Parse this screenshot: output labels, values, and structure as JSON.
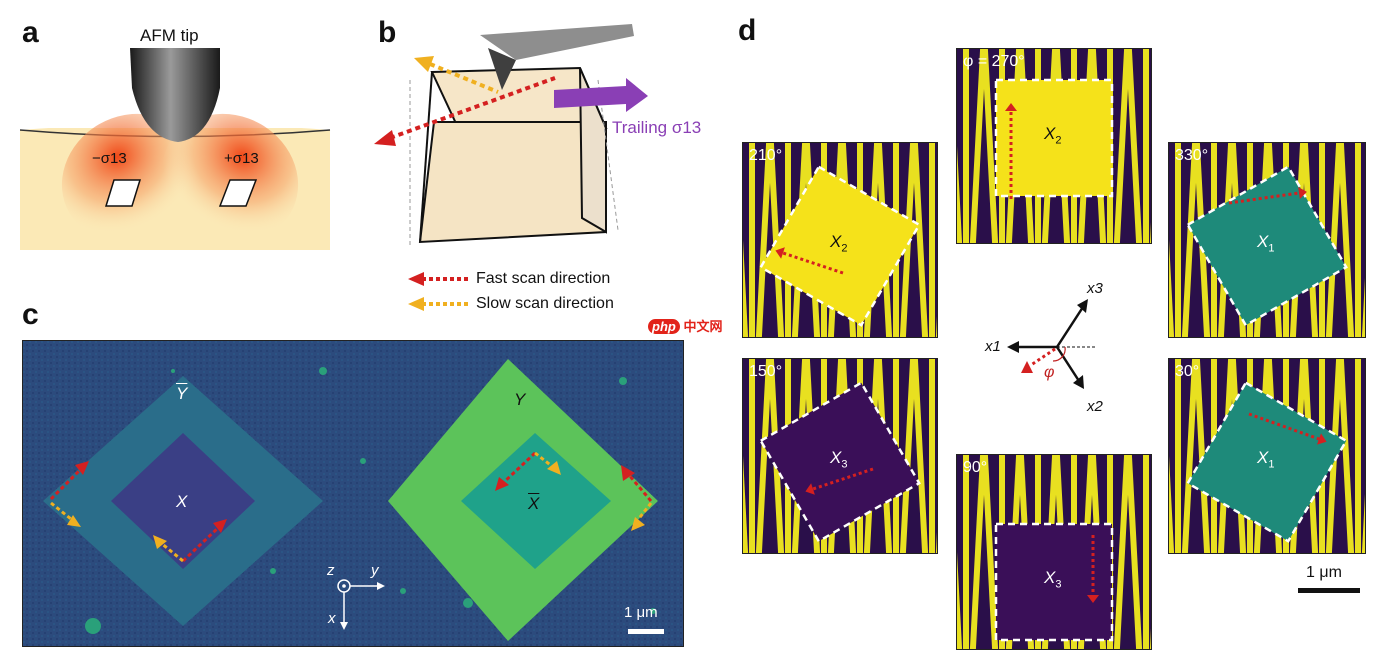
{
  "figure": {
    "panel_a": {
      "letter": "a",
      "tip_label": "AFM tip",
      "stress_left": "−σ13",
      "stress_right": "+σ13"
    },
    "panel_b": {
      "letter": "b",
      "trailing_label": "Trailing σ13",
      "legend_fast": "Fast scan direction",
      "legend_slow": "Slow scan direction",
      "fast_color": "#d42020",
      "slow_color": "#f0b020",
      "trailing_color": "#8a3fb5"
    },
    "panel_c": {
      "letter": "c",
      "label_ybar": "Y",
      "label_x": "X",
      "label_y": "Y",
      "label_xbar": "X",
      "axis_z": "z",
      "axis_y": "y",
      "axis_x": "x",
      "scalebar": "1 μm"
    },
    "panel_d": {
      "letter": "d",
      "tiles": [
        {
          "angle": "φ = 270°",
          "domain": "X",
          "domain_sub": "2"
        },
        {
          "angle": "210°",
          "domain": "X",
          "domain_sub": "2"
        },
        {
          "angle": "330°",
          "domain": "X",
          "domain_sub": "1"
        },
        {
          "angle": "150°",
          "domain": "X",
          "domain_sub": "3"
        },
        {
          "angle": "30°",
          "domain": "X",
          "domain_sub": "1"
        },
        {
          "angle": "90°",
          "domain": "X",
          "domain_sub": "3"
        }
      ],
      "axis_x1": "x1",
      "axis_x2": "x2",
      "axis_x3": "x3",
      "phi": "φ",
      "scalebar": "1 μm"
    },
    "watermark": {
      "php": "php",
      "cn": "中文网"
    }
  }
}
